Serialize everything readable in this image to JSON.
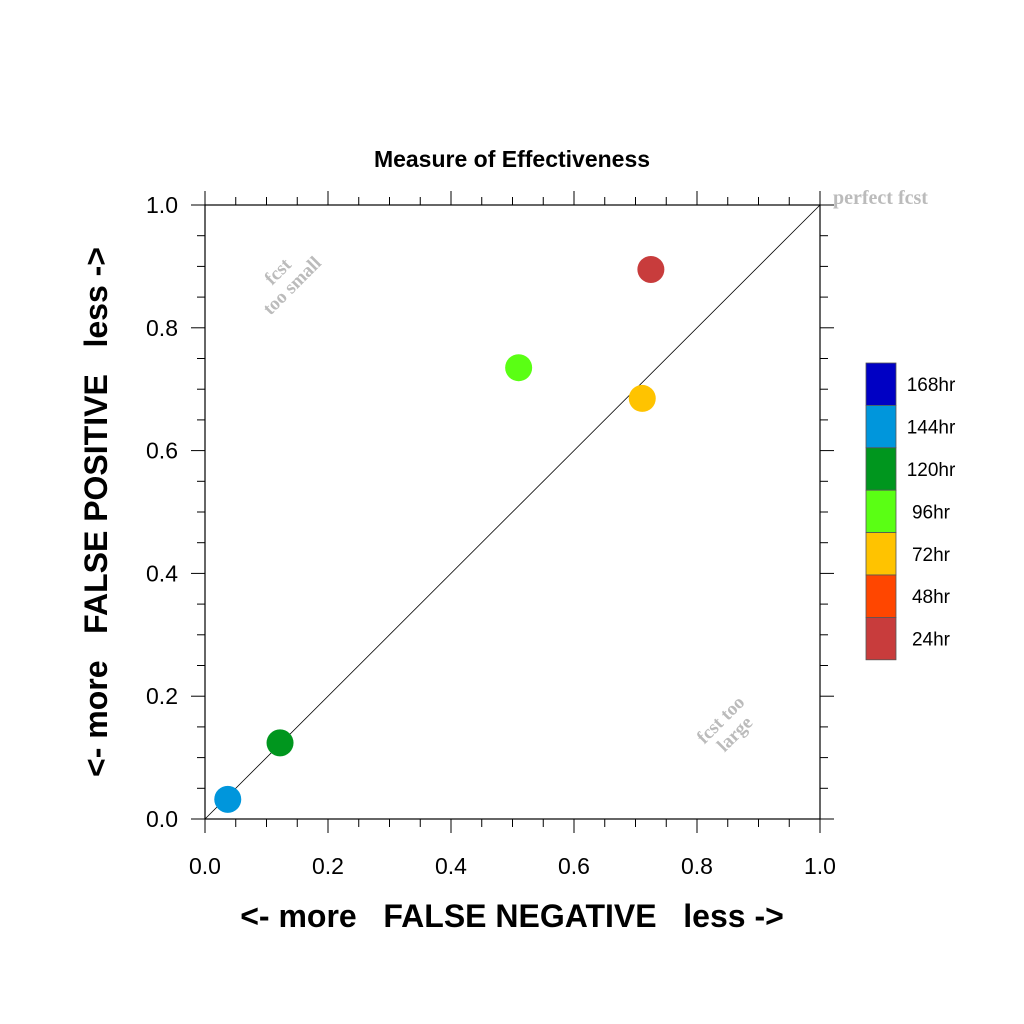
{
  "chart_data": {
    "type": "scatter",
    "title": "Measure of Effectiveness",
    "xlabel": "<- more   FALSE NEGATIVE   less ->",
    "ylabel": "<- more   FALSE POSITIVE   less ->",
    "xlim": [
      0.0,
      1.0
    ],
    "ylim": [
      0.0,
      1.0
    ],
    "x_ticks": [
      "0.0",
      "0.2",
      "0.4",
      "0.6",
      "0.8",
      "1.0"
    ],
    "y_ticks": [
      "0.0",
      "0.2",
      "0.4",
      "0.6",
      "0.8",
      "1.0"
    ],
    "grid": false,
    "reference_line": {
      "from": [
        0.0,
        0.0
      ],
      "to": [
        1.0,
        1.0
      ],
      "label": "perfect fcst"
    },
    "annotations": [
      {
        "lines": [
          "fcst",
          "too small"
        ],
        "x": 0.13,
        "y": 0.88
      },
      {
        "lines": [
          "fcst too",
          "large"
        ],
        "x": 0.85,
        "y": 0.15
      }
    ],
    "legend": {
      "placement": "right",
      "entries": [
        {
          "label": "168hr",
          "color": "#0000c4"
        },
        {
          "label": "144hr",
          "color": "#0096dc"
        },
        {
          "label": "120hr",
          "color": "#00961e"
        },
        {
          "label": "96hr",
          "color": "#5aff14"
        },
        {
          "label": "72hr",
          "color": "#ffc300"
        },
        {
          "label": "48hr",
          "color": "#ff4600"
        },
        {
          "label": "24hr",
          "color": "#c83c3c"
        }
      ]
    },
    "points": [
      {
        "label": "144hr",
        "x": 0.037,
        "y": 0.032,
        "color": "#0096dc"
      },
      {
        "label": "120hr",
        "x": 0.122,
        "y": 0.124,
        "color": "#00961e"
      },
      {
        "label": "96hr",
        "x": 0.51,
        "y": 0.735,
        "color": "#5aff14"
      },
      {
        "label": "72hr",
        "x": 0.711,
        "y": 0.685,
        "color": "#ffc300"
      },
      {
        "label": "24hr",
        "x": 0.725,
        "y": 0.895,
        "color": "#c83c3c"
      }
    ]
  }
}
